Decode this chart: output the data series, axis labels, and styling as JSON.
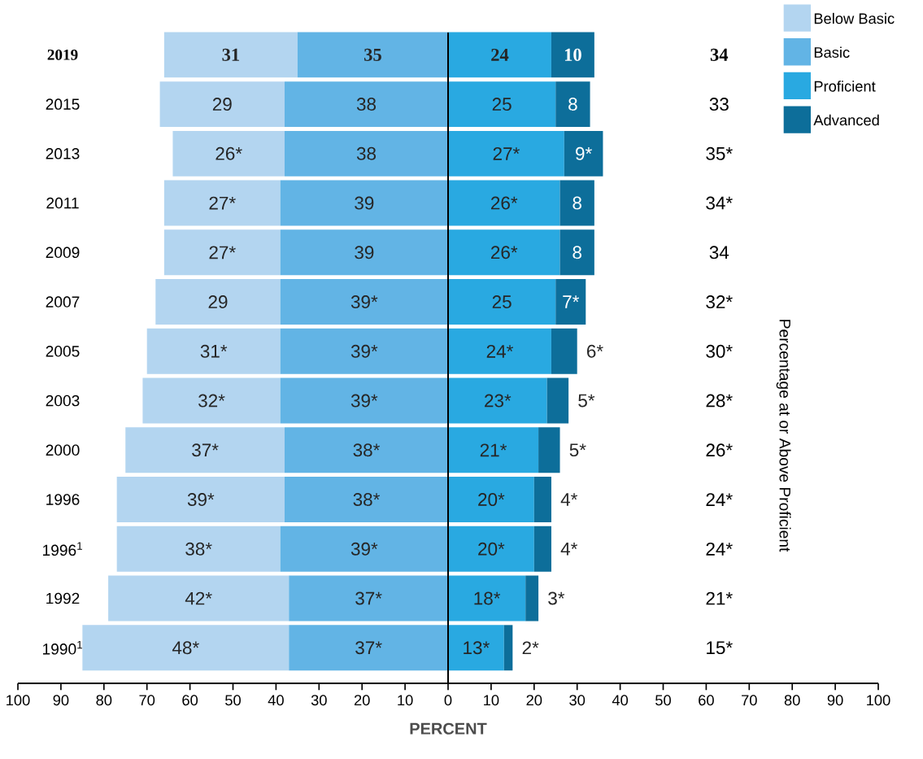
{
  "chart_data": {
    "type": "bar",
    "orientation": "horizontal",
    "categories": [
      "2019",
      "2015",
      "2013",
      "2011",
      "2009",
      "2007",
      "2005",
      "2003",
      "2000",
      "1996",
      "1996$^{1}$",
      "1992",
      "1990$^{1}$"
    ],
    "series": [
      {
        "name": "Below Basic",
        "color": "#b3d5f0",
        "values": [
          31,
          29,
          26,
          27,
          27,
          29,
          31,
          32,
          37,
          39,
          38,
          42,
          48
        ],
        "base": [
          -66,
          -67,
          -64,
          -66,
          -66,
          -68,
          -70,
          -71,
          -75,
          -77,
          -77,
          -79,
          -85
        ],
        "value_labels": [
          "31",
          "29",
          "26*",
          "27*",
          "27*",
          "29",
          "31*",
          "32*",
          "37*",
          "39*",
          "38*",
          "42*",
          "48*"
        ]
      },
      {
        "name": "Basic",
        "color": "#62b4e5",
        "values": [
          35,
          38,
          38,
          39,
          39,
          39,
          39,
          39,
          38,
          38,
          39,
          37,
          37
        ],
        "base": [
          -35,
          -38,
          -38,
          -39,
          -39,
          -39,
          -39,
          -39,
          -38,
          -38,
          -39,
          -37,
          -37
        ],
        "value_labels": [
          "35",
          "38",
          "38",
          "39",
          "39",
          "39*",
          "39*",
          "39*",
          "38*",
          "38*",
          "39*",
          "37*",
          "37*"
        ]
      },
      {
        "name": "Proficient",
        "color": "#29a9e1",
        "values": [
          24,
          25,
          27,
          26,
          26,
          25,
          24,
          23,
          21,
          20,
          20,
          18,
          13
        ],
        "base": [
          0,
          0,
          0,
          0,
          0,
          0,
          0,
          0,
          0,
          0,
          0,
          0,
          0
        ],
        "value_labels": [
          "24",
          "25",
          "27*",
          "26*",
          "26*",
          "25",
          "24*",
          "23*",
          "21*",
          "20*",
          "20*",
          "18*",
          "13*"
        ]
      },
      {
        "name": "Advanced",
        "color": "#0d6e9a",
        "values": [
          10,
          8,
          9,
          8,
          8,
          7,
          6,
          5,
          5,
          4,
          4,
          3,
          2
        ],
        "base": [
          24,
          25,
          27,
          26,
          26,
          25,
          24,
          23,
          21,
          20,
          20,
          18,
          13
        ],
        "value_labels": [
          "10",
          "8",
          "9*",
          "8",
          "8",
          "7*",
          "6*",
          "5*",
          "5*",
          "4*",
          "4*",
          "3*",
          "2*"
        ]
      }
    ],
    "xlim": [
      -100,
      100
    ],
    "xticks": [
      {
        "value": -100,
        "label": "100"
      },
      {
        "value": -90,
        "label": "90"
      },
      {
        "value": -80,
        "label": "80"
      },
      {
        "value": -70,
        "label": "70"
      },
      {
        "value": -60,
        "label": "60"
      },
      {
        "value": -50,
        "label": "50"
      },
      {
        "value": -40,
        "label": "40"
      },
      {
        "value": -30,
        "label": "30"
      },
      {
        "value": -20,
        "label": "20"
      },
      {
        "value": -10,
        "label": "10"
      },
      0,
      10,
      20,
      30,
      40,
      50,
      60,
      70,
      80,
      90,
      100
    ],
    "xlabel": "PERCENT",
    "y2label": "Percentage at or Above Proficient",
    "legend": "top right",
    "annotations": [
      "34",
      "33",
      "35*",
      "34*",
      "34",
      "32*",
      "30*",
      "28*",
      "26*",
      "24*",
      "24*",
      "21*",
      "15*"
    ]
  }
}
